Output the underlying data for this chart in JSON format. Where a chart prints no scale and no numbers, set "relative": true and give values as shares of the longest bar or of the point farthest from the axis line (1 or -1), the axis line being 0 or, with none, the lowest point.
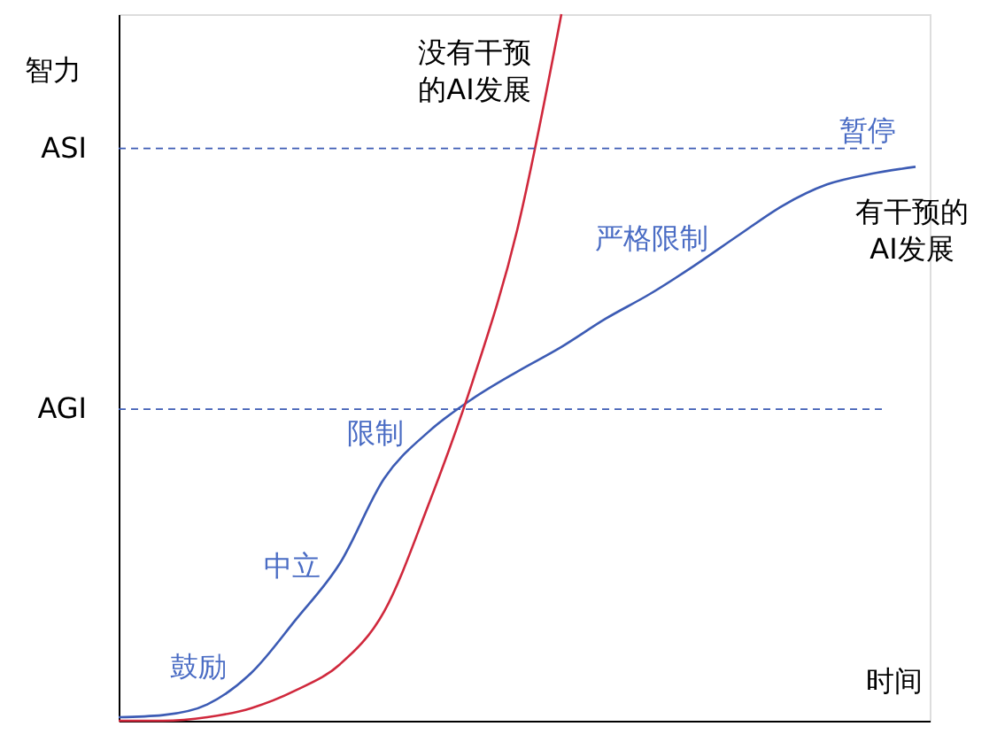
{
  "chart_data": {
    "type": "line",
    "relative": true,
    "xlabel": "时间",
    "ylabel": "智力",
    "categories": [
      null,
      null,
      null,
      null,
      null,
      null,
      null,
      null,
      null,
      null,
      null,
      null,
      null,
      null,
      null,
      null,
      null,
      null,
      null
    ],
    "series": [
      {
        "color": "#3c5bb4",
        "values": [
          0.005,
          0.008,
          0.023,
          0.068,
          0.143,
          0.223,
          0.343,
          0.409,
          0.456,
          0.494,
          0.529,
          0.569,
          0.604,
          0.644,
          0.687,
          0.729,
          0.759,
          0.774,
          0.784
        ]
      },
      {
        "color": "#d0283c",
        "values": [
          0,
          0,
          0.005,
          0.018,
          0.043,
          0.08,
          0.155,
          0.306,
          0.481,
          0.694,
          1.0,
          null,
          null,
          null,
          null,
          null,
          null,
          null,
          null
        ]
      }
    ],
    "ref_lines": [
      {
        "axis": "y",
        "value": 0.81,
        "label": "ASI",
        "color": "#3c5bb4",
        "line_style": "dashed"
      },
      {
        "axis": "y",
        "value": 0.441,
        "label": "AGI",
        "color": "#3c5bb4",
        "line_style": "dashed"
      }
    ],
    "annotations": [
      "鼓励",
      "中立",
      "限制",
      "严格限制",
      "暂停",
      "没有干预的AI发展",
      "有干预的AI发展"
    ],
    "grid": false,
    "legend": false,
    "marker": "none",
    "line_style": "solid"
  }
}
